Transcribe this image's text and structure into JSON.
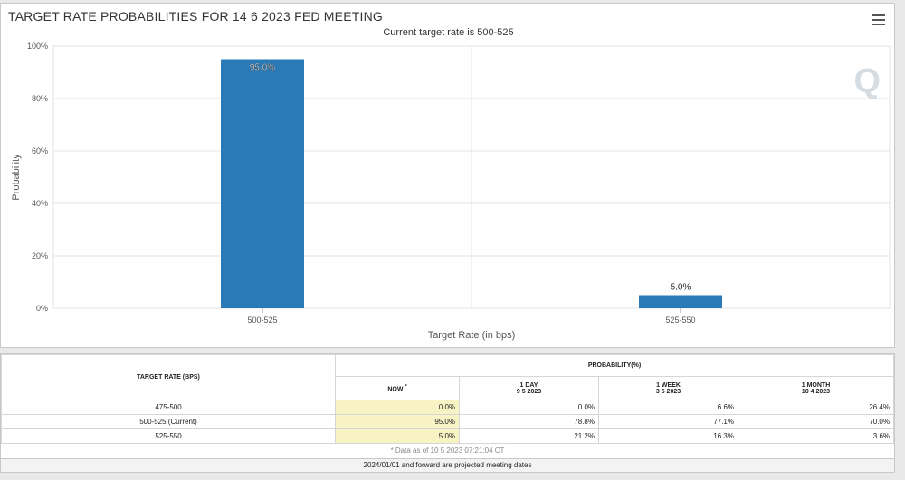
{
  "chart_data": {
    "type": "bar",
    "title": "TARGET RATE PROBABILITIES FOR 14 6 2023 FED MEETING",
    "subtitle": "Current target rate is 500-525",
    "categories": [
      "500-525",
      "525-550"
    ],
    "values": [
      95.0,
      5.0
    ],
    "data_labels": [
      "95.0%",
      "5.0%"
    ],
    "xlabel": "Target Rate (in bps)",
    "ylabel": "Probability",
    "ylim": [
      0,
      100
    ],
    "yticks": [
      "0%",
      "20%",
      "40%",
      "60%",
      "80%",
      "100%"
    ],
    "bar_color": "#2a7ab8",
    "grid": true
  },
  "table": {
    "col_target": "TARGET RATE (BPS)",
    "col_probability": "PROBABILITY(%)",
    "col_now": "NOW",
    "now_mark": "*",
    "col_1day": "1 DAY",
    "col_1day_date": "9 5 2023",
    "col_1week": "1 WEEK",
    "col_1week_date": "3 5 2023",
    "col_1month": "1 MONTH",
    "col_1month_date": "10 4 2023",
    "rows": [
      {
        "target": "475-500",
        "now": "0.0%",
        "day": "0.0%",
        "week": "6.6%",
        "month": "26.4%"
      },
      {
        "target": "500-525 (Current)",
        "now": "95.0%",
        "day": "78.8%",
        "week": "77.1%",
        "month": "70.0%"
      },
      {
        "target": "525-550",
        "now": "5.0%",
        "day": "21.2%",
        "week": "16.3%",
        "month": "3.6%"
      }
    ],
    "note": "* Data as of 10 5 2023 07:21:04 CT"
  },
  "footer": "2024/01/01 and forward are projected meeting dates"
}
